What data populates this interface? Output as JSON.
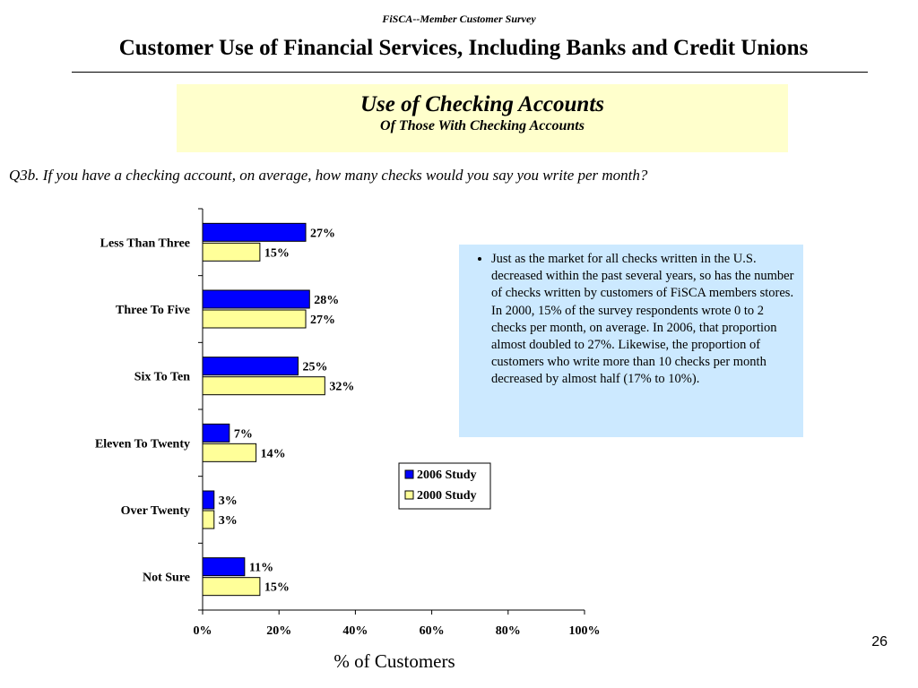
{
  "header": {
    "survey_label": "FiSCA--Member Customer Survey",
    "title": "Customer Use of Financial Services, Including Banks and Credit Unions"
  },
  "subtitle_box": {
    "title": "Use of Checking Accounts",
    "subtitle": "Of Those With Checking Accounts"
  },
  "question": "Q3b.  If you have a checking account, on average, how many checks would you say you write per month?",
  "note": {
    "bullet": "Just as the market for all checks written in the U.S. decreased within the past several years, so has the number of checks written by customers of FiSCA members stores.  In 2000, 15% of the survey respondents wrote 0 to 2 checks per month, on average.  In 2006, that proportion almost doubled to 27%.  Likewise, the proportion of customers who write more than 10 checks per month decreased by almost half (17% to 10%).",
    "background": "#cce9ff"
  },
  "page_number": "26",
  "colors": {
    "series_2006": "#0000ff",
    "series_2000": "#ffff99",
    "subtitle_box": "#ffffcc"
  },
  "chart_data": {
    "type": "bar",
    "orientation": "horizontal",
    "categories": [
      "Less Than Three",
      "Three To Five",
      "Six To Ten",
      "Eleven To Twenty",
      "Over Twenty",
      "Not Sure"
    ],
    "series": [
      {
        "name": "2006 Study",
        "values": [
          27,
          28,
          25,
          7,
          3,
          11
        ],
        "labels": [
          "27%",
          "28%",
          "25%",
          "7%",
          "3%",
          "11%"
        ],
        "color": "#0000ff"
      },
      {
        "name": "2000 Study",
        "values": [
          15,
          27,
          32,
          14,
          3,
          15
        ],
        "labels": [
          "15%",
          "27%",
          "32%",
          "14%",
          "3%",
          "15%"
        ],
        "color": "#ffff99"
      }
    ],
    "xlim": [
      0,
      100
    ],
    "xticks": [
      0,
      20,
      40,
      60,
      80,
      100
    ],
    "xtick_labels": [
      "0%",
      "20%",
      "40%",
      "60%",
      "80%",
      "100%"
    ],
    "xlabel": "% of Customers",
    "legend": "right",
    "grid": false
  }
}
